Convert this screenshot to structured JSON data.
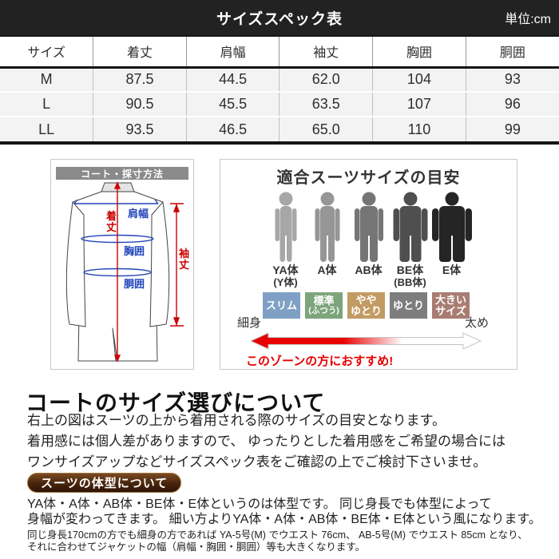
{
  "header": {
    "title": "サイズスペック表",
    "unit_label": "単位:cm"
  },
  "size_table": {
    "columns": [
      "サイズ",
      "着丈",
      "肩幅",
      "袖丈",
      "胸囲",
      "胴囲"
    ],
    "rows": [
      {
        "size": "M",
        "values": [
          "87.5",
          "44.5",
          "62.0",
          "104",
          "93"
        ]
      },
      {
        "size": "L",
        "values": [
          "90.5",
          "45.5",
          "63.5",
          "107",
          "96"
        ]
      },
      {
        "size": "LL",
        "values": [
          "93.5",
          "46.5",
          "65.0",
          "110",
          "99"
        ]
      }
    ]
  },
  "measure_panel": {
    "title": "コート・採寸方法",
    "labels": {
      "length": "着丈",
      "shoulder": "肩幅",
      "chest": "胸囲",
      "waist": "胴囲",
      "sleeve": "袖丈"
    }
  },
  "fit_panel": {
    "title": "適合スーツサイズの目安",
    "body_types": [
      {
        "label": "YA体",
        "sublabel": "(Y体)",
        "color": "#a7a7a7"
      },
      {
        "label": "A体",
        "sublabel": "",
        "color": "#969696"
      },
      {
        "label": "AB体",
        "sublabel": "",
        "color": "#757575"
      },
      {
        "label": "BE体",
        "sublabel": "(BB体)",
        "color": "#4f4f4f"
      },
      {
        "label": "E体",
        "sublabel": "",
        "color": "#252525"
      }
    ],
    "fit_labels": [
      {
        "lines": [
          "スリム"
        ],
        "color": "#7fa0c4"
      },
      {
        "lines": [
          "標準",
          "(ふつう)"
        ],
        "color": "#7da47b"
      },
      {
        "lines": [
          "やや",
          "ゆとり"
        ],
        "color": "#c29b62"
      },
      {
        "lines": [
          "ゆとり"
        ],
        "color": "#7d7d7d"
      },
      {
        "lines": [
          "大きい",
          "サイズ"
        ],
        "color": "#a97c72"
      }
    ],
    "scale_left": "細身",
    "scale_right": "太め",
    "recommend_text": "このゾーンの方におすすめ!"
  },
  "size_guide": {
    "heading": "コートのサイズ選びについて",
    "lines": [
      "右上の図はスーツの上から着用される際のサイズの目安となります。",
      "着用感には個人差がありますので、 ゆったりとした着用感をご希望の場合には",
      "ワンサイズアップなどサイズスペック表をご確認の上でご検討下さいませ。"
    ]
  },
  "body_type_section": {
    "badge": "スーツの体型について",
    "lines": [
      "YA体・A体・AB体・BE体・E体というのは体型です。 同じ身長でも体型によって",
      "身幅が変わってきます。 細い方よりYA体・A体・AB体・BE体・E体という風になります。"
    ],
    "note_lines": [
      "同じ身長170cmの方でも細身の方であれば YA-5号(M) でウエスト 76cm、 AB-5号(M) でウエスト 85cm となり、",
      "それに合わせてジャケットの幅（肩幅・胸囲・胴囲）等も大きくなります。"
    ]
  },
  "colors": {
    "header_bar": "#222222",
    "table_border": "#151515",
    "row_bg": "#f3f3f3",
    "panel_border": "#c9c9c9",
    "measure_title_bg": "#8a8a8a",
    "measure_red": "#cc0000",
    "measure_blue": "#2244bb",
    "accent_red": "#e60000",
    "badge_brown_top": "#7b4a22",
    "badge_brown_bottom": "#2f1404"
  }
}
